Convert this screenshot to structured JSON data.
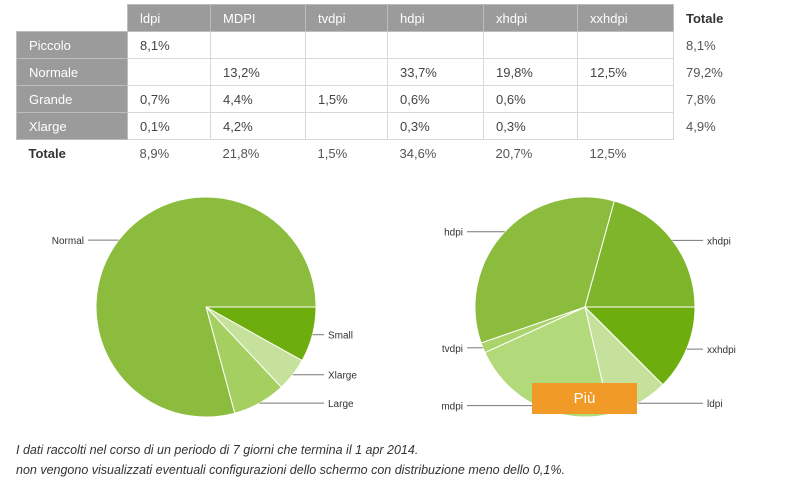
{
  "table": {
    "columns": [
      "ldpi",
      "MDPI",
      "tvdpi",
      "hdpi",
      "xhdpi",
      "xxhdpi"
    ],
    "total_header": "Totale",
    "rows": [
      {
        "label": "Piccolo",
        "cells": [
          "8,1%",
          "",
          "",
          "",
          "",
          ""
        ],
        "total": "8,1%"
      },
      {
        "label": "Normale",
        "cells": [
          "",
          "13,2%",
          "",
          "33,7%",
          "19,8%",
          "12,5%"
        ],
        "total": "79,2%"
      },
      {
        "label": "Grande",
        "cells": [
          "0,7%",
          "4,4%",
          "1,5%",
          "0,6%",
          "0,6%",
          ""
        ],
        "total": "7,8%"
      },
      {
        "label": "Xlarge",
        "cells": [
          "0,1%",
          "4,2%",
          "",
          "0,3%",
          "0,3%",
          ""
        ],
        "total": "4,9%"
      }
    ],
    "total_row": {
      "label": "Totale",
      "cells": [
        "8,9%",
        "21,8%",
        "1,5%",
        "34,6%",
        "20,7%",
        "12,5%"
      ]
    }
  },
  "chart_data": [
    {
      "type": "pie",
      "title": "",
      "labels": [
        "Small",
        "Xlarge",
        "Large",
        "Normal"
      ],
      "values": [
        8.1,
        4.9,
        7.8,
        79.2
      ],
      "colors": [
        "#6ead0e",
        "#c6e19b",
        "#a5cf60",
        "#8bbc3d"
      ]
    },
    {
      "type": "pie",
      "title": "",
      "labels": [
        "xxhdpi",
        "ldpi",
        "mdpi",
        "tvdpi",
        "hdpi",
        "xhdpi"
      ],
      "values": [
        12.5,
        8.9,
        21.8,
        1.5,
        34.6,
        20.7
      ],
      "colors": [
        "#6ead0e",
        "#c6e19b",
        "#b2d97a",
        "#aad46a",
        "#8bbc3d",
        "#7eb52a"
      ]
    }
  ],
  "more_button": "Più",
  "notes": [
    "I dati raccolti nel corso di un periodo di 7 giorni che termina il 1 apr 2014.",
    "non vengono visualizzati eventuali configurazioni dello schermo con distribuzione meno dello 0,1%."
  ]
}
